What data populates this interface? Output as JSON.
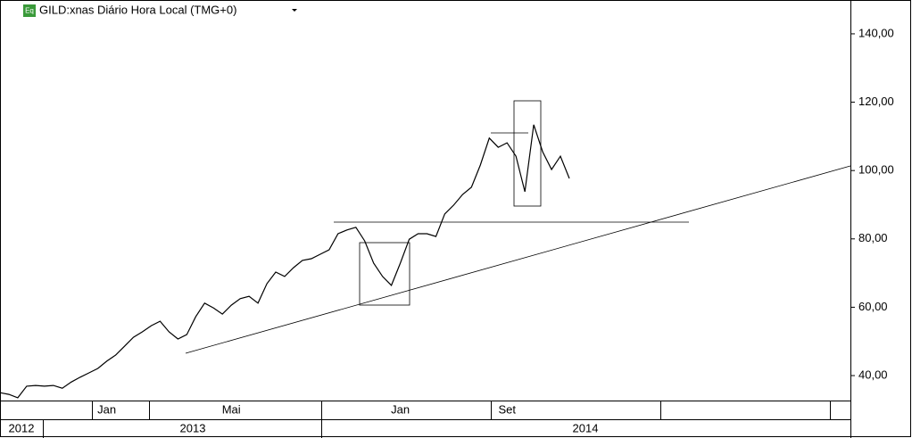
{
  "chart_data": {
    "type": "line",
    "title": "GILD:xnas Diário Hora Local (TMG+0)",
    "badge": "Eq",
    "color": "#000000",
    "ylim": [
      32.7,
      149.9
    ],
    "yticks": [
      {
        "value": 40,
        "label": "40,00"
      },
      {
        "value": 60,
        "label": "60,00"
      },
      {
        "value": 80,
        "label": "80,00"
      },
      {
        "value": 100,
        "label": "100,00"
      },
      {
        "value": 120,
        "label": "120,00"
      },
      {
        "value": 140,
        "label": "140,00"
      }
    ],
    "years": [
      "2012",
      "2013",
      "2014"
    ],
    "categories": [
      null,
      null,
      null,
      null,
      null,
      null,
      null,
      null,
      null,
      null,
      null,
      null,
      "Jan",
      null,
      null,
      null,
      null,
      null,
      null,
      null,
      null,
      null,
      null,
      null,
      null,
      null,
      "Mai",
      null,
      null,
      null,
      null,
      null,
      null,
      null,
      null,
      null,
      null,
      null,
      null,
      null,
      null,
      null,
      null,
      null,
      null,
      "Jan",
      null,
      null,
      null,
      null,
      null,
      null,
      null,
      null,
      null,
      null,
      null,
      "Set",
      null,
      null,
      null,
      null,
      null,
      null,
      null
    ],
    "values": [
      35.0,
      34.5,
      33.5,
      36.9,
      37.1,
      36.9,
      37.1,
      36.3,
      38.1,
      39.5,
      40.8,
      42.1,
      44.2,
      46.0,
      48.6,
      51.2,
      52.8,
      54.6,
      55.9,
      52.8,
      50.7,
      52.0,
      57.2,
      61.2,
      59.8,
      58.0,
      60.6,
      62.5,
      63.2,
      61.2,
      66.9,
      70.3,
      69.0,
      71.6,
      73.7,
      74.2,
      75.5,
      76.8,
      81.5,
      82.6,
      83.4,
      79.4,
      72.9,
      69.0,
      66.4,
      72.9,
      79.9,
      81.5,
      81.5,
      80.7,
      87.3,
      89.9,
      93.0,
      95.1,
      101.6,
      109.5,
      106.8,
      108.1,
      104.2,
      93.8,
      113.4,
      105.5,
      100.3,
      104.2,
      97.7
    ]
  }
}
